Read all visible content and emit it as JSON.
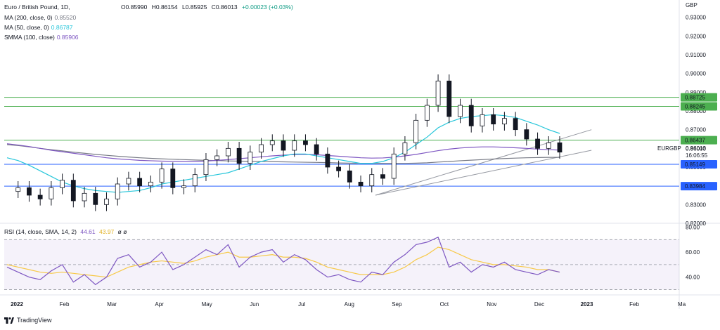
{
  "header": {
    "symbol_title": "Euro / British Pound, 1D,",
    "open": "O0.85990",
    "high": "H0.86154",
    "low": "L0.85925",
    "close": "C0.86013",
    "change": "+0.00023 (+0.03%)",
    "change_color": "#089981"
  },
  "indicators": [
    {
      "label": "MA (200, close, 0)",
      "value": "0.85520",
      "color": "#787b86"
    },
    {
      "label": "MA (50, close, 0)",
      "value": "0.86787",
      "color": "#26c6da"
    },
    {
      "label": "SMMA (100, close)",
      "value": "0.85906",
      "color": "#7e57c2"
    }
  ],
  "rsi_legend": {
    "label": "RSI (14, close, SMA, 14, 2)",
    "value1": "44.61",
    "value1_color": "#7e57c2",
    "value2": "43.97",
    "value2_color": "#f7c948",
    "tail": "ø  ø"
  },
  "currency": "GBP",
  "symbol_tag": "EURGBP",
  "countdown": "16:06:55",
  "footer_brand": "TradingView",
  "chart_data": {
    "type": "candlestick",
    "price_axis": {
      "ticks": [
        "0.93000",
        "0.92000",
        "0.91000",
        "0.90000",
        "0.89000",
        "0.88000",
        "0.87000",
        "0.86000",
        "0.85000",
        "0.84000",
        "0.83000",
        "0.82000"
      ],
      "ylim": [
        0.82,
        0.934
      ]
    },
    "time_axis": {
      "labels": [
        "2022",
        "Feb",
        "Mar",
        "Apr",
        "May",
        "Jun",
        "Jul",
        "Aug",
        "Sep",
        "Oct",
        "Nov",
        "Dec",
        "2023",
        "Feb",
        "Ma"
      ]
    },
    "horizontal_levels": [
      {
        "price": 0.88725,
        "label": "0.88725",
        "color": "#4caf50"
      },
      {
        "price": 0.88245,
        "label": "0.88245",
        "color": "#4caf50"
      },
      {
        "price": 0.86437,
        "label": "0.86437",
        "color": "#4caf50"
      },
      {
        "price": 0.85149,
        "label": "0.85149",
        "color": "#2962ff"
      },
      {
        "price": 0.83984,
        "label": "0.83984",
        "color": "#2962ff"
      }
    ],
    "current_price": {
      "value": 0.86013,
      "label": "0.86013"
    },
    "closes_weekly": [
      0.837,
      0.839,
      0.835,
      0.833,
      0.839,
      0.843,
      0.832,
      0.836,
      0.83,
      0.833,
      0.841,
      0.844,
      0.84,
      0.842,
      0.849,
      0.839,
      0.84,
      0.846,
      0.854,
      0.856,
      0.86,
      0.852,
      0.858,
      0.862,
      0.864,
      0.859,
      0.864,
      0.862,
      0.857,
      0.85,
      0.848,
      0.842,
      0.84,
      0.846,
      0.844,
      0.857,
      0.863,
      0.875,
      0.883,
      0.896,
      0.877,
      0.883,
      0.872,
      0.878,
      0.873,
      0.876,
      0.87,
      0.865,
      0.86,
      0.863,
      0.858
    ],
    "ma200": [
      0.862,
      0.8615,
      0.8608,
      0.86,
      0.8593,
      0.8587,
      0.858,
      0.8574,
      0.8568,
      0.8563,
      0.8558,
      0.8554,
      0.855,
      0.8547,
      0.8544,
      0.8542,
      0.854,
      0.8538,
      0.8536,
      0.8535,
      0.8533,
      0.8532,
      0.8531,
      0.853,
      0.8529,
      0.8528,
      0.8527,
      0.8526,
      0.8525,
      0.8524,
      0.8522,
      0.8521,
      0.852,
      0.852,
      0.852,
      0.852,
      0.852,
      0.8521,
      0.8523,
      0.8527,
      0.853,
      0.8534,
      0.8537,
      0.854,
      0.8543,
      0.8546,
      0.8548,
      0.855,
      0.8551,
      0.8552,
      0.8552
    ],
    "ma50": [
      0.855,
      0.8535,
      0.851,
      0.848,
      0.845,
      0.842,
      0.84,
      0.8385,
      0.8375,
      0.837,
      0.8365,
      0.837,
      0.8375,
      0.839,
      0.841,
      0.842,
      0.843,
      0.844,
      0.845,
      0.846,
      0.847,
      0.849,
      0.851,
      0.853,
      0.8545,
      0.856,
      0.857,
      0.857,
      0.856,
      0.855,
      0.854,
      0.853,
      0.852,
      0.852,
      0.853,
      0.855,
      0.858,
      0.862,
      0.866,
      0.871,
      0.874,
      0.876,
      0.877,
      0.8775,
      0.878,
      0.8775,
      0.8765,
      0.8745,
      0.8725,
      0.87,
      0.868
    ],
    "smma100": [
      0.8625,
      0.8618,
      0.861,
      0.86,
      0.859,
      0.8582,
      0.8574,
      0.8566,
      0.8558,
      0.855,
      0.8544,
      0.854,
      0.8536,
      0.8534,
      0.8532,
      0.8531,
      0.853,
      0.853,
      0.8532,
      0.8536,
      0.854,
      0.8545,
      0.855,
      0.8555,
      0.856,
      0.8564,
      0.8567,
      0.8568,
      0.8566,
      0.8562,
      0.8558,
      0.8554,
      0.855,
      0.8548,
      0.8549,
      0.8553,
      0.856,
      0.8568,
      0.8578,
      0.8588,
      0.8596,
      0.8602,
      0.8606,
      0.8608,
      0.8608,
      0.8606,
      0.8603,
      0.86,
      0.8596,
      0.8593,
      0.8591
    ],
    "trendlines": [
      {
        "from": [
          0.55,
          0.835
        ],
        "to": [
          0.87,
          0.87
        ],
        "color": "#9598a1"
      },
      {
        "from": [
          0.55,
          0.835
        ],
        "to": [
          0.87,
          0.859
        ],
        "color": "#9598a1"
      }
    ],
    "rsi": {
      "ticks": [
        "80.00",
        "60.00",
        "40.00"
      ],
      "ylim": [
        28,
        82
      ],
      "levels": [
        70,
        50,
        30
      ],
      "values": [
        48,
        44,
        40,
        38,
        45,
        50,
        36,
        42,
        34,
        40,
        55,
        58,
        48,
        52,
        60,
        46,
        50,
        56,
        62,
        58,
        66,
        48,
        56,
        60,
        62,
        52,
        58,
        54,
        46,
        40,
        42,
        38,
        36,
        44,
        42,
        52,
        58,
        66,
        68,
        72,
        48,
        52,
        44,
        50,
        48,
        52,
        46,
        44,
        42,
        46,
        44
      ],
      "signal": [
        50,
        48,
        46,
        44,
        43,
        44,
        43,
        42,
        41,
        40,
        44,
        48,
        50,
        52,
        53,
        52,
        51,
        53,
        56,
        58,
        60,
        56,
        56,
        57,
        58,
        56,
        56,
        55,
        52,
        48,
        46,
        44,
        42,
        42,
        42,
        44,
        48,
        54,
        58,
        64,
        62,
        58,
        54,
        52,
        50,
        50,
        49,
        48,
        46,
        46,
        44
      ]
    }
  }
}
